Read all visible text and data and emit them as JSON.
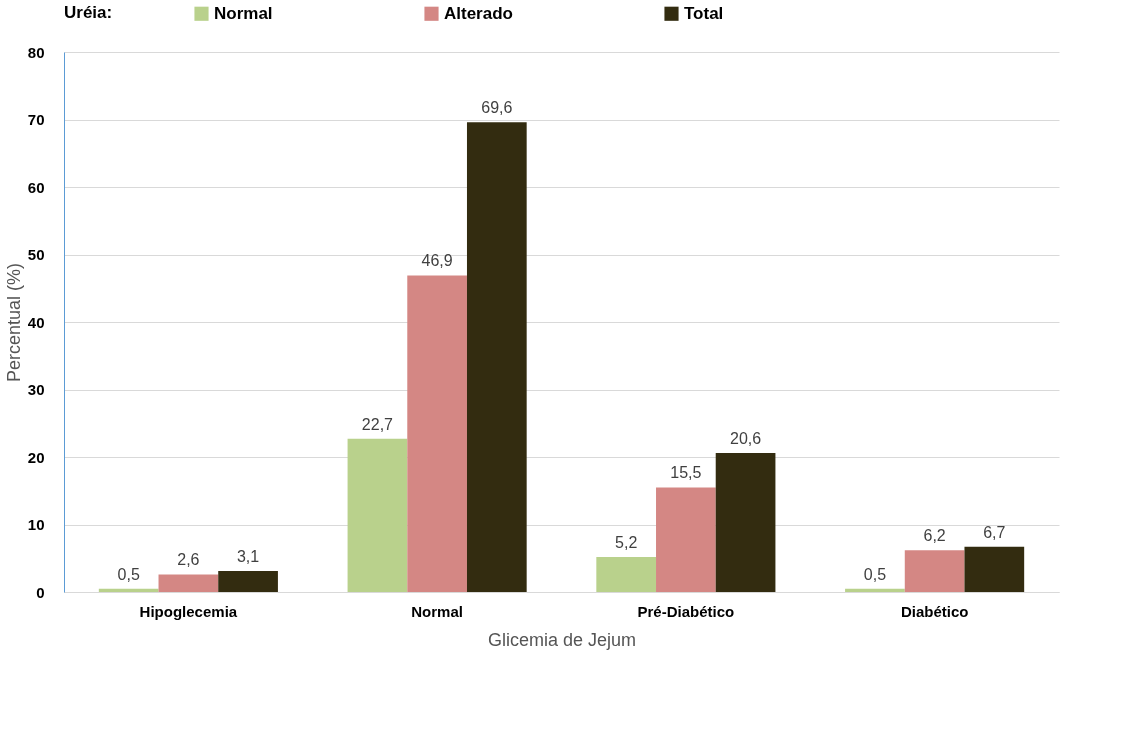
{
  "chart_data": {
    "type": "bar",
    "xlabel": "Glicemia de Jejum",
    "ylabel": "Percentual (%)",
    "legend_title": "Uréia:",
    "legend": "top",
    "categories": [
      "Hipoglecemia",
      "Normal",
      "Pré-Diabético",
      "Diabético"
    ],
    "series": [
      {
        "name": "Normal",
        "color": "#b9d18c",
        "values": [
          0.5,
          22.7,
          5.2,
          0.5
        ],
        "value_labels": [
          "0,5",
          "22,7",
          "5,2",
          "0,5"
        ]
      },
      {
        "name": "Alterado",
        "color": "#d48784",
        "values": [
          2.6,
          46.9,
          15.5,
          6.2
        ],
        "value_labels": [
          "2,6",
          "46,9",
          "15,5",
          "6,2"
        ]
      },
      {
        "name": "Total",
        "color": "#332c10",
        "values": [
          3.1,
          69.6,
          20.6,
          6.7
        ],
        "value_labels": [
          "3,1",
          "69,6",
          "20,6",
          "6,7"
        ]
      }
    ],
    "ylim": [
      0,
      80
    ],
    "yticks": [
      0,
      10,
      20,
      30,
      40,
      50,
      60,
      70,
      80
    ],
    "grid": "y"
  }
}
